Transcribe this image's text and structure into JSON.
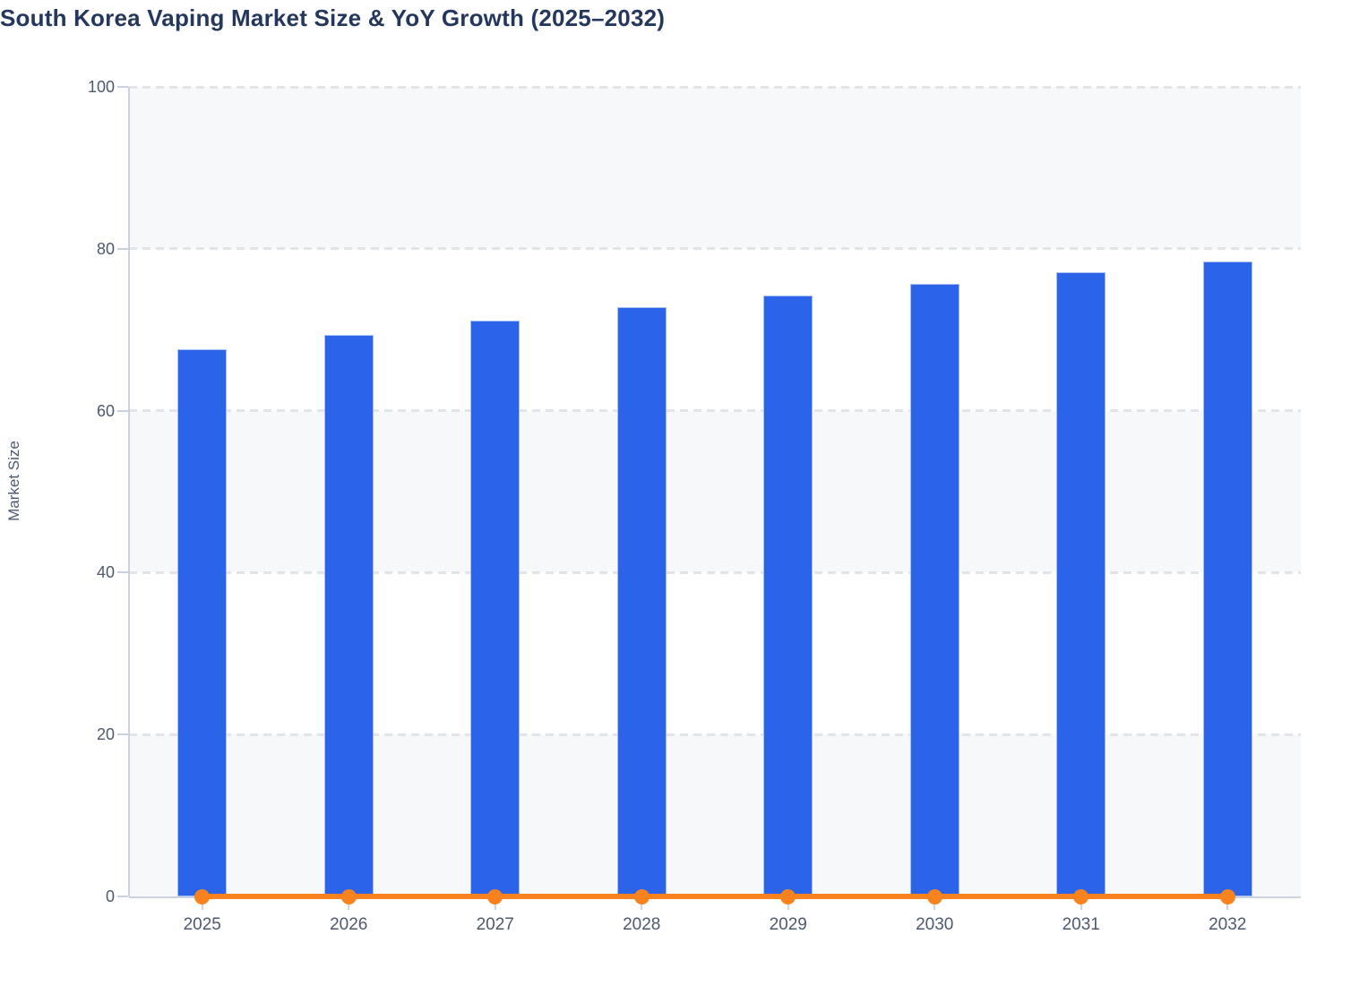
{
  "chart_data": {
    "type": "bar",
    "title": "South Korea Vaping Market Size & YoY Growth (2025–2032)",
    "ylabel": "Market Size",
    "xlabel": "",
    "categories": [
      "2025",
      "2026",
      "2027",
      "2028",
      "2029",
      "2030",
      "2031",
      "2032"
    ],
    "series": [
      {
        "name": "Market Size",
        "type": "bar",
        "color": "#2b64e8",
        "values": [
          67.6,
          69.4,
          71.1,
          72.8,
          74.2,
          75.7,
          77.1,
          78.4
        ]
      },
      {
        "name": "YoY Growth",
        "type": "line",
        "color": "#f8821e",
        "values": [
          0,
          0,
          0,
          0,
          0,
          0,
          0,
          0
        ]
      }
    ],
    "ylim": [
      0,
      100
    ],
    "yticks": [
      0,
      20,
      40,
      60,
      80,
      100
    ],
    "grid": "horizontal-dashed",
    "legend": "none",
    "background_bands": {
      "orientation": "horizontal",
      "colors": [
        "#f7f8fa",
        "#ffffff"
      ]
    }
  },
  "style": {
    "bar_color": "#2b64e8",
    "bar_border_color": "#a6bdf0",
    "line_color": "#f8821e",
    "band_color": "#f7f8fa",
    "grid_color": "#e2e4e9",
    "axis_color": "#ccd3e0",
    "label_color": "#4c5a6e",
    "title_color": "#24375c"
  }
}
